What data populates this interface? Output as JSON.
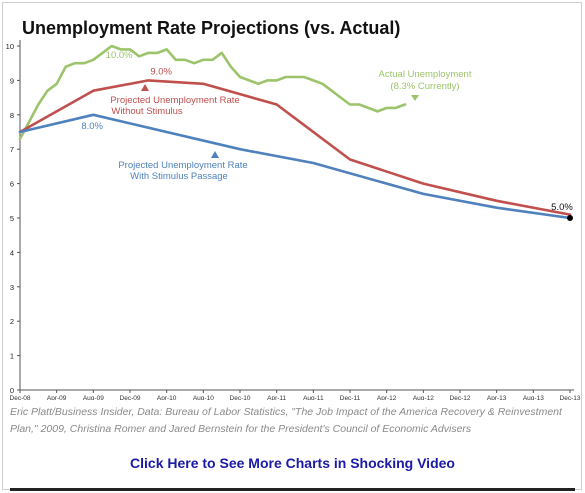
{
  "chart_data": {
    "type": "line",
    "title": "Unemployment Rate Projections (vs. Actual)",
    "xlabel": "",
    "ylabel": "",
    "ylim": [
      0,
      10
    ],
    "yticks": [
      0,
      1,
      2,
      3,
      4,
      5,
      6,
      7,
      8,
      9,
      10
    ],
    "x_ticks": [
      "Dec-08",
      "Apr-09",
      "Aug-09",
      "Dec-09",
      "Apr-10",
      "Aug-10",
      "Dec-10",
      "Apr-11",
      "Aug-11",
      "Dec-11",
      "Apr-12",
      "Aug-12",
      "Dec-12",
      "Apr-13",
      "Aug-13",
      "Dec-13"
    ],
    "x_unit": "months since Dec-08",
    "grid": false,
    "series": [
      {
        "name": "Actual Unemployment",
        "sublabel": "(8.3% Currently)",
        "color": "#9dc36b",
        "points": [
          [
            0,
            7.3
          ],
          [
            1,
            7.8
          ],
          [
            2,
            8.3
          ],
          [
            3,
            8.7
          ],
          [
            4,
            8.9
          ],
          [
            5,
            9.4
          ],
          [
            6,
            9.5
          ],
          [
            7,
            9.5
          ],
          [
            8,
            9.6
          ],
          [
            9,
            9.8
          ],
          [
            10,
            10.0
          ],
          [
            11,
            9.9
          ],
          [
            12,
            9.9
          ],
          [
            13,
            9.7
          ],
          [
            14,
            9.8
          ],
          [
            15,
            9.8
          ],
          [
            16,
            9.9
          ],
          [
            17,
            9.6
          ],
          [
            18,
            9.6
          ],
          [
            19,
            9.5
          ],
          [
            20,
            9.6
          ],
          [
            21,
            9.6
          ],
          [
            22,
            9.8
          ],
          [
            23,
            9.4
          ],
          [
            24,
            9.1
          ],
          [
            25,
            9.0
          ],
          [
            26,
            8.9
          ],
          [
            27,
            9.0
          ],
          [
            28,
            9.0
          ],
          [
            29,
            9.1
          ],
          [
            30,
            9.1
          ],
          [
            31,
            9.1
          ],
          [
            32,
            9.0
          ],
          [
            33,
            8.9
          ],
          [
            34,
            8.7
          ],
          [
            35,
            8.5
          ],
          [
            36,
            8.3
          ],
          [
            37,
            8.3
          ],
          [
            38,
            8.2
          ],
          [
            39,
            8.1
          ],
          [
            40,
            8.2
          ],
          [
            41,
            8.2
          ],
          [
            42,
            8.3
          ]
        ],
        "labels": [
          {
            "text": "10.0%",
            "x": 10,
            "y": 10.0
          }
        ]
      },
      {
        "name": "Projected Unemployment Rate",
        "name_line2": "Without Stimulus",
        "color": "#c0504d",
        "points": [
          [
            0,
            7.5
          ],
          [
            8,
            8.7
          ],
          [
            14,
            9.0
          ],
          [
            20,
            8.9
          ],
          [
            28,
            8.3
          ],
          [
            36,
            6.7
          ],
          [
            44,
            6.0
          ],
          [
            52,
            5.5
          ],
          [
            60,
            5.1
          ]
        ],
        "labels": [
          {
            "text": "9.0%",
            "x": 14,
            "y": 9.0
          }
        ]
      },
      {
        "name": "Projected Unemployment Rate",
        "name_line2": "With Stimulus Passage",
        "color": "#4f81bd",
        "points": [
          [
            0,
            7.5
          ],
          [
            8,
            8.0
          ],
          [
            24,
            7.0
          ],
          [
            32,
            6.6
          ],
          [
            44,
            5.7
          ],
          [
            52,
            5.3
          ],
          [
            60,
            5.0
          ]
        ],
        "labels": [
          {
            "text": "8.0%",
            "x": 8,
            "y": 8.0
          }
        ]
      }
    ],
    "end_point": {
      "x": 60,
      "y": 5.0,
      "label": "5.0%"
    }
  },
  "source_text": "Eric Platt/Business Insider, Data: Bureau of Labor Statistics, \"The Job Impact of the America Recovery & Reinvestment Plan,\" 2009, Christina Romer and Jared Bernstein for the President's Council of Economic Advisers",
  "cta_text": "Click Here to See More Charts in Shocking Video"
}
